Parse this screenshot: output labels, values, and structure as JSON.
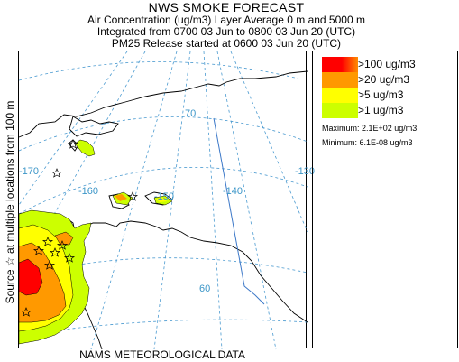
{
  "header": {
    "title": "NWS SMOKE FORECAST",
    "line1": "Air Concentration (ug/m3) Layer Average     0 m and  5000 m",
    "line2": "Integrated from 0700 03 Jun to 0800 03 Jun 20 (UTC)",
    "line3": "PM25 Release started at 0600 03 Jun 20 (UTC)"
  },
  "side_label": "Source ☆   at multiple locations   from   100 m",
  "footer": "NAMS METEOROLOGICAL DATA",
  "legend": {
    "items": [
      {
        "label": ">100 ug/m3",
        "color": "#ff0000",
        "accent": "#ff8c00"
      },
      {
        "label": ">20 ug/m3",
        "color": "#ff9900"
      },
      {
        "label": ">5 ug/m3",
        "color": "#ffff00"
      },
      {
        "label": ">1 ug/m3",
        "color": "#ccff00"
      }
    ],
    "maximum": "Maximum: 2.1E+02 ug/m3",
    "minimum": "Minimum: 6.1E-08 ug/m3"
  },
  "map": {
    "longitude_labels": [
      "-170",
      "-160",
      "-150",
      "-140",
      "-130"
    ],
    "latitude_labels": [
      "70",
      "60"
    ],
    "colors": {
      "graticule": "#4a9ad0",
      "coastline": "#000000",
      "border": "#3c78c8",
      "land": "#ffffff"
    }
  }
}
